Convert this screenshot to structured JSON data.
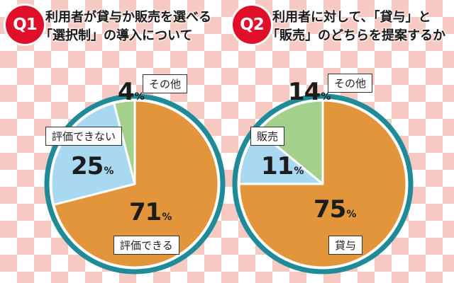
{
  "chart_data": [
    {
      "type": "pie",
      "question_badge": "Q1",
      "title_lines": [
        "利用者が貸与か販売を選べる",
        "「選択制」の導入について"
      ],
      "slices": [
        {
          "label": "評価できる",
          "value": 71,
          "color": "#e2953a"
        },
        {
          "label": "評価できない",
          "value": 25,
          "color": "#a9d8f1"
        },
        {
          "label": "その他",
          "value": 4,
          "color": "#a3d08a"
        }
      ],
      "unit": "%",
      "ring_color": "#1f8a98"
    },
    {
      "type": "pie",
      "question_badge": "Q2",
      "title_lines": [
        "利用者に対して、「貸与」と",
        "「販売」のどちらを提案するか"
      ],
      "slices": [
        {
          "label": "貸与",
          "value": 75,
          "color": "#e2953a"
        },
        {
          "label": "販売",
          "value": 11,
          "color": "#a9d8f1"
        },
        {
          "label": "その他",
          "value": 14,
          "color": "#a3d08a"
        }
      ],
      "unit": "%",
      "ring_color": "#1f8a98"
    }
  ]
}
